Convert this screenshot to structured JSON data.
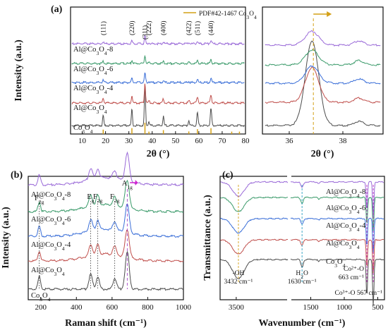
{
  "panel_labels": [
    "(a)",
    "(b)",
    "(c)"
  ],
  "chart_data": [
    {
      "type": "line",
      "panel": "(a)",
      "xlabel": "2θ (°)",
      "ylabel": "Intensity (a.u.)",
      "xlim": [
        5,
        80
      ],
      "xticks": [
        "10",
        "20",
        "30",
        "40",
        "50",
        "60",
        "70",
        "80"
      ],
      "reference": {
        "label": "PDF#42-1467 Co3O4",
        "label_main": "PDF#42-1467 Co",
        "label_sub": "3",
        "label_o": "O",
        "label_sub2": "4",
        "color": "#d4a017",
        "positions": [
          19.0,
          31.3,
          36.9,
          38.6,
          44.8,
          55.7,
          59.4,
          65.2,
          74.1,
          77.4
        ]
      },
      "hkl": [
        {
          "label": "(111)",
          "x": 19.0
        },
        {
          "label": "(220)",
          "x": 31.3
        },
        {
          "label": "(311)",
          "x": 36.9
        },
        {
          "label": "(222)",
          "x": 38.6
        },
        {
          "label": "(400)",
          "x": 44.8
        },
        {
          "label": "(422)",
          "x": 55.7
        },
        {
          "label": "(511)",
          "x": 59.4
        },
        {
          "label": "(440)",
          "x": 65.2
        }
      ],
      "peaks": [
        {
          "x": 19.0,
          "h": 0.25,
          "w": 0.35
        },
        {
          "x": 31.3,
          "h": 0.4,
          "w": 0.35
        },
        {
          "x": 36.9,
          "h": 1.0,
          "w": 0.35
        },
        {
          "x": 38.6,
          "h": 0.1,
          "w": 0.35
        },
        {
          "x": 44.8,
          "h": 0.22,
          "w": 0.35
        },
        {
          "x": 55.7,
          "h": 0.12,
          "w": 0.4
        },
        {
          "x": 59.4,
          "h": 0.32,
          "w": 0.4
        },
        {
          "x": 65.2,
          "h": 0.42,
          "w": 0.4
        }
      ],
      "series": [
        {
          "name": "Co3O4",
          "name_main": "Co",
          "sub1": "3",
          "mid": "O",
          "sub2": "4",
          "prefix": "",
          "color": "#4d4d4d",
          "scale": 1.0
        },
        {
          "name": "Al@Co3O4",
          "name_main": "Co",
          "sub1": "3",
          "mid": "O",
          "sub2": "4",
          "prefix": "Al@",
          "color": "#c0504d",
          "scale": 0.7
        },
        {
          "name": "Al@Co3O4-4",
          "name_main": "Co",
          "sub1": "3",
          "mid": "O",
          "sub2": "4",
          "prefix": "Al@",
          "suffix": "-4",
          "color": "#3b6fd8",
          "scale": 0.35
        },
        {
          "name": "Al@Co3O4-6",
          "name_main": "Co",
          "sub1": "3",
          "mid": "O",
          "sub2": "4",
          "prefix": "Al@",
          "suffix": "-6",
          "color": "#3a9a6a",
          "scale": 0.3
        },
        {
          "name": "Al@Co3O4-8",
          "name_main": "Co",
          "sub1": "3",
          "mid": "O",
          "sub2": "4",
          "prefix": "Al@",
          "suffix": "-8",
          "color": "#9a6ad8",
          "scale": 0.28
        }
      ]
    },
    {
      "type": "line",
      "panel": "(a) zoom",
      "xlabel": "2θ (°)",
      "xlim": [
        35,
        39.5
      ],
      "xticks": [
        "36",
        "38"
      ],
      "arrow_color": "#d4a017"
    },
    {
      "type": "line",
      "panel": "(b)",
      "xlabel": "Raman shift (cm⁻¹)",
      "ylabel": "Intensity (a.u.)",
      "xlim": [
        130,
        1000
      ],
      "xticks": [
        "200",
        "400",
        "600",
        "800",
        "1000"
      ],
      "modes": [
        {
          "label": "F",
          "sub": "2g",
          "x": 192
        },
        {
          "label": "E",
          "sub": "g",
          "x": 480
        },
        {
          "label": "F",
          "sub": "2g",
          "x": 520
        },
        {
          "label": "F",
          "sub": "2g",
          "x": 615
        },
        {
          "label": "A",
          "sub": "1g",
          "x": 685
        }
      ],
      "series_order": [
        "Co3O4",
        "Al@Co3O4",
        "Al@Co3O4-4",
        "Al@Co3O4-6",
        "Al@Co3O4-8"
      ]
    },
    {
      "type": "line",
      "panel": "(c)",
      "xlabel": "Wavenumber (cm⁻¹)",
      "ylabel": "Transmittance (a.u.)",
      "xlim": [
        4000,
        400
      ],
      "xticks": [
        "3500",
        "1500",
        "1000",
        "500"
      ],
      "annotations": [
        {
          "text": "-OH",
          "sub": "3432 cm⁻¹",
          "x": 3432,
          "color": "#d4a017"
        },
        {
          "text": "H2O",
          "sub": "1630 cm⁻¹",
          "x": 1630,
          "color": "#2a9ec0"
        },
        {
          "text": "Co²⁺-O",
          "sub": "663 cm⁻¹",
          "x": 663,
          "color": "#c030c0"
        },
        {
          "text": "Co³⁺-O 567 cm⁻¹",
          "x": 567,
          "color": "#c030c0"
        }
      ]
    }
  ]
}
